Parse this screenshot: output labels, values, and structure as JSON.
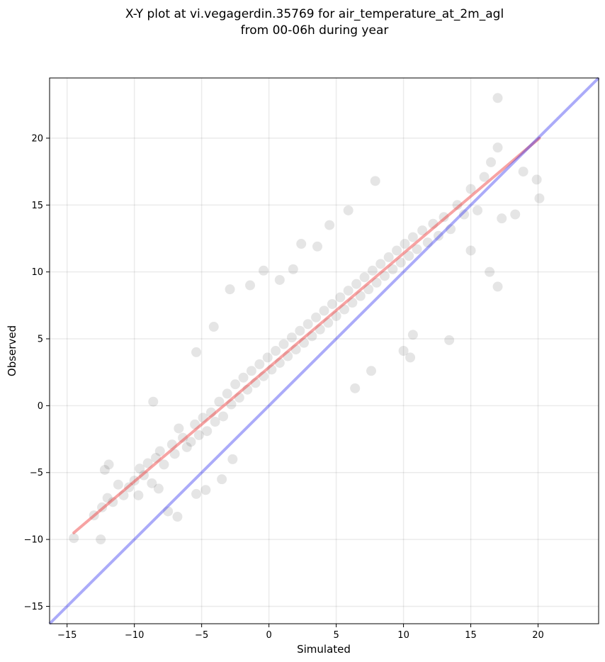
{
  "chart_data": {
    "type": "scatter",
    "title_line1": "X-Y plot at vi.vegagerdin.35769 for air_temperature_at_2m_agl",
    "title_line2": "from 00-06h during year",
    "xlabel": "Simulated",
    "ylabel": "Observed",
    "xlim": [
      -16.3,
      24.5
    ],
    "ylim": [
      -16.3,
      24.5
    ],
    "xticks": [
      -15,
      -10,
      -5,
      0,
      5,
      10,
      15,
      20
    ],
    "yticks": [
      -15,
      -10,
      -5,
      0,
      5,
      10,
      15,
      20
    ],
    "xtick_labels": [
      "−15",
      "−10",
      "−5",
      "0",
      "5",
      "10",
      "15",
      "20"
    ],
    "ytick_labels": [
      "−15",
      "−10",
      "−5",
      "0",
      "5",
      "10",
      "15",
      "20"
    ],
    "grid": true,
    "points_color": "#000000",
    "points_alpha": 0.06,
    "fit_line": {
      "color": "#ee3333",
      "alpha": 0.45,
      "x": [
        -14.5,
        20.1
      ],
      "y": [
        -9.5,
        20.0
      ]
    },
    "identity_line": {
      "color": "#2222ee",
      "alpha": 0.38,
      "x": [
        -16.3,
        24.5
      ],
      "y": [
        -16.3,
        24.5
      ]
    },
    "points": [
      [
        -14.5,
        -9.9
      ],
      [
        -12.5,
        -10.0
      ],
      [
        -13.0,
        -8.2
      ],
      [
        -12.0,
        -6.9
      ],
      [
        -11.6,
        -7.2
      ],
      [
        -12.4,
        -7.6
      ],
      [
        -11.2,
        -5.9
      ],
      [
        -10.8,
        -6.7
      ],
      [
        -10.4,
        -6.1
      ],
      [
        -10.0,
        -5.6
      ],
      [
        -9.6,
        -4.7
      ],
      [
        -9.3,
        -5.2
      ],
      [
        -9.0,
        -4.3
      ],
      [
        -8.7,
        -5.8
      ],
      [
        -8.4,
        -3.9
      ],
      [
        -8.1,
        -3.4
      ],
      [
        -7.8,
        -4.4
      ],
      [
        -7.5,
        -7.9
      ],
      [
        -7.2,
        -2.9
      ],
      [
        -7.0,
        -3.6
      ],
      [
        -6.7,
        -1.7
      ],
      [
        -6.4,
        -2.4
      ],
      [
        -6.1,
        -3.1
      ],
      [
        -5.8,
        -2.7
      ],
      [
        -5.5,
        -1.4
      ],
      [
        -5.2,
        -2.2
      ],
      [
        -4.9,
        -0.9
      ],
      [
        -4.6,
        -1.9
      ],
      [
        -4.3,
        -0.5
      ],
      [
        -4.0,
        -1.2
      ],
      [
        -3.7,
        0.3
      ],
      [
        -3.4,
        -0.8
      ],
      [
        -3.1,
        0.9
      ],
      [
        -2.8,
        0.1
      ],
      [
        -2.5,
        1.6
      ],
      [
        -2.2,
        0.6
      ],
      [
        -1.9,
        2.1
      ],
      [
        -1.6,
        1.2
      ],
      [
        -1.3,
        2.6
      ],
      [
        -1.0,
        1.7
      ],
      [
        -0.7,
        3.1
      ],
      [
        -0.4,
        2.2
      ],
      [
        -0.1,
        3.6
      ],
      [
        0.2,
        2.7
      ],
      [
        0.5,
        4.1
      ],
      [
        0.8,
        3.2
      ],
      [
        1.1,
        4.6
      ],
      [
        1.4,
        3.7
      ],
      [
        1.7,
        5.1
      ],
      [
        2.0,
        4.2
      ],
      [
        2.3,
        5.6
      ],
      [
        2.6,
        4.7
      ],
      [
        2.9,
        6.1
      ],
      [
        3.2,
        5.2
      ],
      [
        3.5,
        6.6
      ],
      [
        3.8,
        5.7
      ],
      [
        4.1,
        7.1
      ],
      [
        4.4,
        6.2
      ],
      [
        4.7,
        7.6
      ],
      [
        5.0,
        6.7
      ],
      [
        5.3,
        8.1
      ],
      [
        5.6,
        7.2
      ],
      [
        5.9,
        8.6
      ],
      [
        6.2,
        7.7
      ],
      [
        6.5,
        9.1
      ],
      [
        6.8,
        8.2
      ],
      [
        7.1,
        9.6
      ],
      [
        7.4,
        8.7
      ],
      [
        7.7,
        10.1
      ],
      [
        8.0,
        9.2
      ],
      [
        8.3,
        10.6
      ],
      [
        8.6,
        9.7
      ],
      [
        8.9,
        11.1
      ],
      [
        9.2,
        10.2
      ],
      [
        9.5,
        11.6
      ],
      [
        9.8,
        10.7
      ],
      [
        10.1,
        12.1
      ],
      [
        10.4,
        11.2
      ],
      [
        10.7,
        12.6
      ],
      [
        11.0,
        11.7
      ],
      [
        11.4,
        13.1
      ],
      [
        11.8,
        12.2
      ],
      [
        12.2,
        13.6
      ],
      [
        12.6,
        12.7
      ],
      [
        13.0,
        14.1
      ],
      [
        13.5,
        13.2
      ],
      [
        14.0,
        15.0
      ],
      [
        14.5,
        14.3
      ],
      [
        15.0,
        16.2
      ],
      [
        15.5,
        14.6
      ],
      [
        16.0,
        17.1
      ],
      [
        16.5,
        18.2
      ],
      [
        17.0,
        19.3
      ],
      [
        17.0,
        23.0
      ],
      [
        17.3,
        14.0
      ],
      [
        18.3,
        14.3
      ],
      [
        18.9,
        17.5
      ],
      [
        19.9,
        16.9
      ],
      [
        20.1,
        15.5
      ],
      [
        16.4,
        10.0
      ],
      [
        17.0,
        8.9
      ],
      [
        15.0,
        11.6
      ],
      [
        13.4,
        4.9
      ],
      [
        10.7,
        5.3
      ],
      [
        10.5,
        3.6
      ],
      [
        10.0,
        4.1
      ],
      [
        7.6,
        2.6
      ],
      [
        6.4,
        1.3
      ],
      [
        -4.1,
        5.9
      ],
      [
        -5.4,
        4.0
      ],
      [
        -2.9,
        8.7
      ],
      [
        -1.4,
        9.0
      ],
      [
        -0.4,
        10.1
      ],
      [
        0.8,
        9.4
      ],
      [
        1.8,
        10.2
      ],
      [
        2.4,
        12.1
      ],
      [
        3.6,
        11.9
      ],
      [
        4.5,
        13.5
      ],
      [
        5.9,
        14.6
      ],
      [
        7.9,
        16.8
      ],
      [
        -6.8,
        -8.3
      ],
      [
        -5.4,
        -6.6
      ],
      [
        -4.7,
        -6.3
      ],
      [
        -3.5,
        -5.5
      ],
      [
        -2.7,
        -4.0
      ],
      [
        -8.2,
        -6.2
      ],
      [
        -9.7,
        -6.7
      ],
      [
        -11.9,
        -4.4
      ],
      [
        -12.2,
        -4.8
      ],
      [
        -8.6,
        0.3
      ]
    ]
  }
}
